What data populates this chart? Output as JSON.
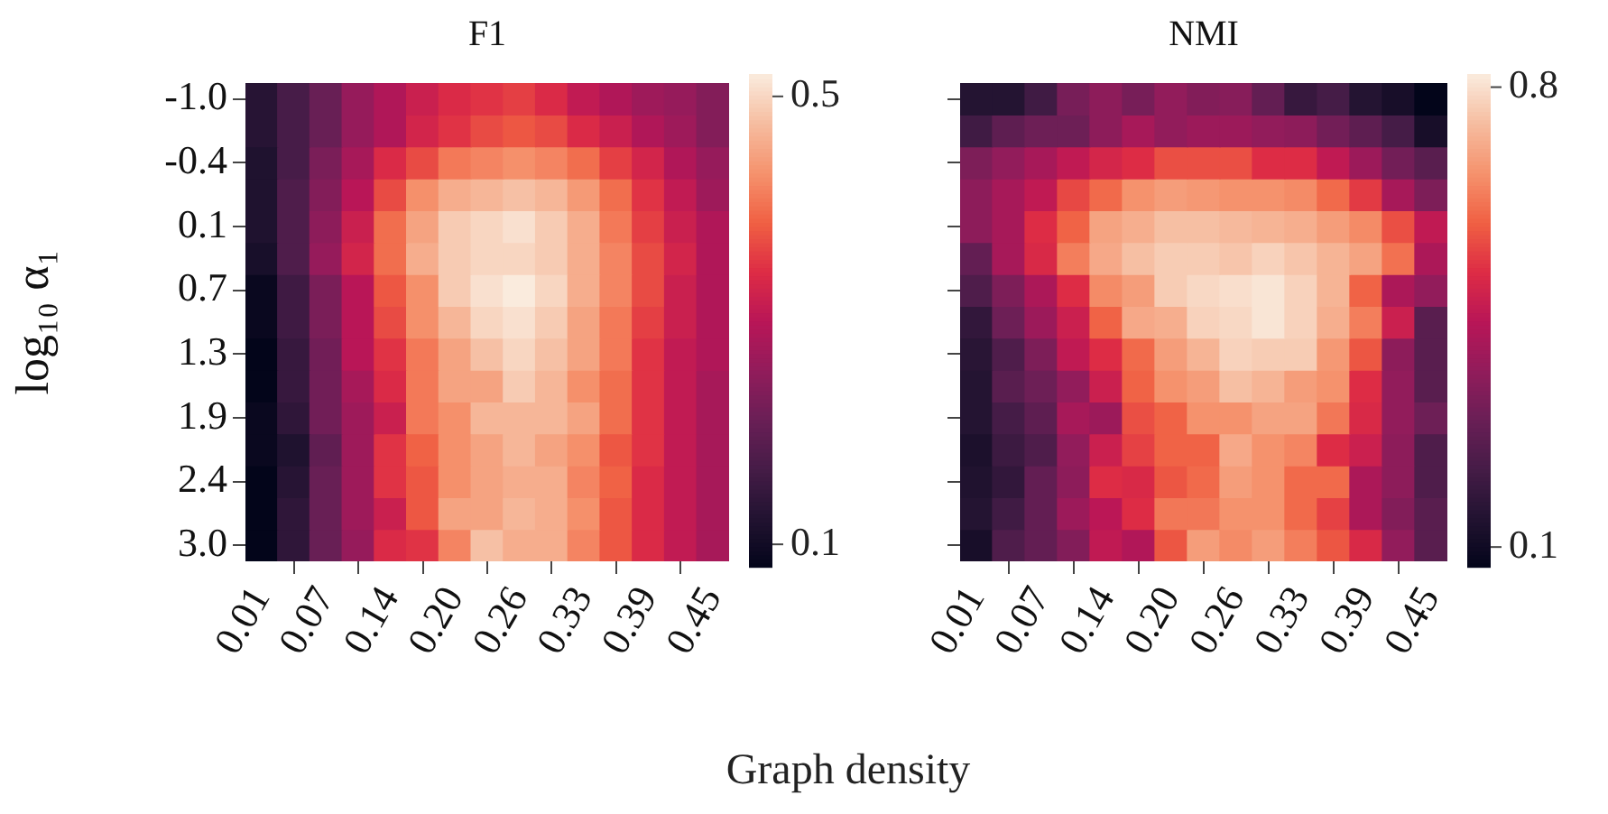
{
  "chart_data": [
    {
      "type": "heatmap",
      "title": "F1",
      "ylabel": "log₁₀ α₁",
      "xlabel": "Graph density",
      "categories": [
        "0.01",
        null,
        "0.07",
        null,
        "0.14",
        null,
        "0.20",
        null,
        "0.26",
        null,
        "0.33",
        null,
        "0.39",
        null,
        "0.45"
      ],
      "y_categories": [
        "-1.0",
        null,
        "-0.4",
        null,
        "0.1",
        null,
        "0.7",
        null,
        "1.3",
        null,
        "1.9",
        null,
        "2.4",
        null,
        "3.0"
      ],
      "clim": [
        0.08,
        0.52
      ],
      "cticks": [
        0.1,
        0.5
      ],
      "cells": [
        [
          0.13,
          0.17,
          0.21,
          0.26,
          0.29,
          0.32,
          0.34,
          0.35,
          0.36,
          0.34,
          0.31,
          0.29,
          0.27,
          0.26,
          0.24
        ],
        [
          0.13,
          0.17,
          0.21,
          0.26,
          0.29,
          0.33,
          0.35,
          0.37,
          0.38,
          0.37,
          0.34,
          0.32,
          0.29,
          0.27,
          0.24
        ],
        [
          0.12,
          0.17,
          0.23,
          0.28,
          0.34,
          0.37,
          0.41,
          0.42,
          0.43,
          0.42,
          0.4,
          0.36,
          0.33,
          0.29,
          0.26
        ],
        [
          0.12,
          0.18,
          0.24,
          0.3,
          0.37,
          0.43,
          0.46,
          0.47,
          0.48,
          0.47,
          0.44,
          0.4,
          0.35,
          0.31,
          0.27
        ],
        [
          0.12,
          0.18,
          0.25,
          0.32,
          0.4,
          0.45,
          0.49,
          0.5,
          0.51,
          0.49,
          0.46,
          0.41,
          0.36,
          0.32,
          0.29
        ],
        [
          0.11,
          0.18,
          0.26,
          0.33,
          0.4,
          0.46,
          0.49,
          0.5,
          0.5,
          0.49,
          0.46,
          0.42,
          0.37,
          0.33,
          0.29
        ],
        [
          0.09,
          0.16,
          0.23,
          0.3,
          0.38,
          0.43,
          0.49,
          0.51,
          0.52,
          0.5,
          0.46,
          0.42,
          0.37,
          0.32,
          0.29
        ],
        [
          0.09,
          0.16,
          0.23,
          0.3,
          0.37,
          0.43,
          0.47,
          0.5,
          0.51,
          0.49,
          0.45,
          0.41,
          0.36,
          0.32,
          0.29
        ],
        [
          0.08,
          0.15,
          0.22,
          0.3,
          0.35,
          0.41,
          0.45,
          0.48,
          0.5,
          0.48,
          0.45,
          0.41,
          0.35,
          0.31,
          0.29
        ],
        [
          0.08,
          0.15,
          0.22,
          0.28,
          0.34,
          0.41,
          0.45,
          0.45,
          0.49,
          0.47,
          0.43,
          0.4,
          0.35,
          0.31,
          0.28
        ],
        [
          0.09,
          0.14,
          0.22,
          0.27,
          0.32,
          0.41,
          0.43,
          0.47,
          0.47,
          0.47,
          0.45,
          0.4,
          0.35,
          0.31,
          0.28
        ],
        [
          0.09,
          0.12,
          0.2,
          0.27,
          0.35,
          0.39,
          0.43,
          0.45,
          0.47,
          0.45,
          0.43,
          0.38,
          0.35,
          0.31,
          0.28
        ],
        [
          0.08,
          0.13,
          0.21,
          0.27,
          0.35,
          0.38,
          0.43,
          0.45,
          0.46,
          0.46,
          0.42,
          0.39,
          0.34,
          0.31,
          0.28
        ],
        [
          0.08,
          0.14,
          0.21,
          0.27,
          0.32,
          0.38,
          0.45,
          0.45,
          0.47,
          0.46,
          0.43,
          0.38,
          0.34,
          0.31,
          0.28
        ],
        [
          0.08,
          0.14,
          0.21,
          0.26,
          0.34,
          0.35,
          0.42,
          0.48,
          0.46,
          0.46,
          0.42,
          0.38,
          0.34,
          0.31,
          0.28
        ]
      ]
    },
    {
      "type": "heatmap",
      "title": "NMI",
      "tick_labels": "x",
      "categories": [
        "0.01",
        null,
        "0.07",
        null,
        "0.14",
        null,
        "0.20",
        null,
        "0.26",
        null,
        "0.33",
        null,
        "0.39",
        null,
        "0.45"
      ],
      "y_categories": [
        "-1.0",
        null,
        "-0.4",
        null,
        "0.1",
        null,
        "0.7",
        null,
        "1.3",
        null,
        "1.9",
        null,
        "2.4",
        null,
        "3.0"
      ],
      "clim": [
        0.07,
        0.82
      ],
      "cticks": [
        0.1,
        0.8
      ],
      "cells": [
        [
          0.15,
          0.15,
          0.21,
          0.32,
          0.36,
          0.32,
          0.37,
          0.34,
          0.35,
          0.28,
          0.19,
          0.22,
          0.15,
          0.12,
          0.07
        ],
        [
          0.21,
          0.27,
          0.3,
          0.3,
          0.36,
          0.41,
          0.37,
          0.39,
          0.39,
          0.37,
          0.36,
          0.31,
          0.27,
          0.22,
          0.12
        ],
        [
          0.33,
          0.37,
          0.41,
          0.46,
          0.5,
          0.52,
          0.57,
          0.57,
          0.57,
          0.52,
          0.52,
          0.46,
          0.39,
          0.31,
          0.26
        ],
        [
          0.36,
          0.41,
          0.46,
          0.56,
          0.61,
          0.67,
          0.69,
          0.68,
          0.67,
          0.67,
          0.66,
          0.61,
          0.54,
          0.41,
          0.33
        ],
        [
          0.36,
          0.41,
          0.52,
          0.6,
          0.7,
          0.72,
          0.75,
          0.75,
          0.74,
          0.73,
          0.72,
          0.69,
          0.66,
          0.57,
          0.46
        ],
        [
          0.28,
          0.41,
          0.51,
          0.64,
          0.71,
          0.75,
          0.77,
          0.77,
          0.76,
          0.78,
          0.76,
          0.73,
          0.7,
          0.62,
          0.42
        ],
        [
          0.24,
          0.33,
          0.42,
          0.52,
          0.66,
          0.69,
          0.77,
          0.79,
          0.8,
          0.81,
          0.78,
          0.73,
          0.6,
          0.42,
          0.37
        ],
        [
          0.18,
          0.3,
          0.39,
          0.48,
          0.6,
          0.71,
          0.72,
          0.78,
          0.79,
          0.81,
          0.78,
          0.72,
          0.64,
          0.48,
          0.26
        ],
        [
          0.16,
          0.24,
          0.33,
          0.46,
          0.52,
          0.61,
          0.69,
          0.73,
          0.78,
          0.77,
          0.77,
          0.68,
          0.58,
          0.36,
          0.26
        ],
        [
          0.15,
          0.26,
          0.3,
          0.37,
          0.48,
          0.6,
          0.67,
          0.69,
          0.75,
          0.73,
          0.69,
          0.67,
          0.52,
          0.37,
          0.26
        ],
        [
          0.15,
          0.22,
          0.27,
          0.41,
          0.39,
          0.57,
          0.6,
          0.67,
          0.67,
          0.7,
          0.7,
          0.63,
          0.51,
          0.37,
          0.3
        ],
        [
          0.13,
          0.2,
          0.24,
          0.37,
          0.48,
          0.55,
          0.6,
          0.6,
          0.71,
          0.67,
          0.65,
          0.52,
          0.48,
          0.36,
          0.24
        ],
        [
          0.14,
          0.18,
          0.28,
          0.36,
          0.52,
          0.51,
          0.58,
          0.61,
          0.69,
          0.67,
          0.61,
          0.61,
          0.42,
          0.36,
          0.24
        ],
        [
          0.15,
          0.21,
          0.28,
          0.39,
          0.45,
          0.52,
          0.63,
          0.63,
          0.67,
          0.67,
          0.61,
          0.55,
          0.42,
          0.34,
          0.26
        ],
        [
          0.12,
          0.24,
          0.28,
          0.34,
          0.46,
          0.43,
          0.58,
          0.69,
          0.66,
          0.69,
          0.64,
          0.58,
          0.51,
          0.37,
          0.26
        ]
      ]
    }
  ]
}
